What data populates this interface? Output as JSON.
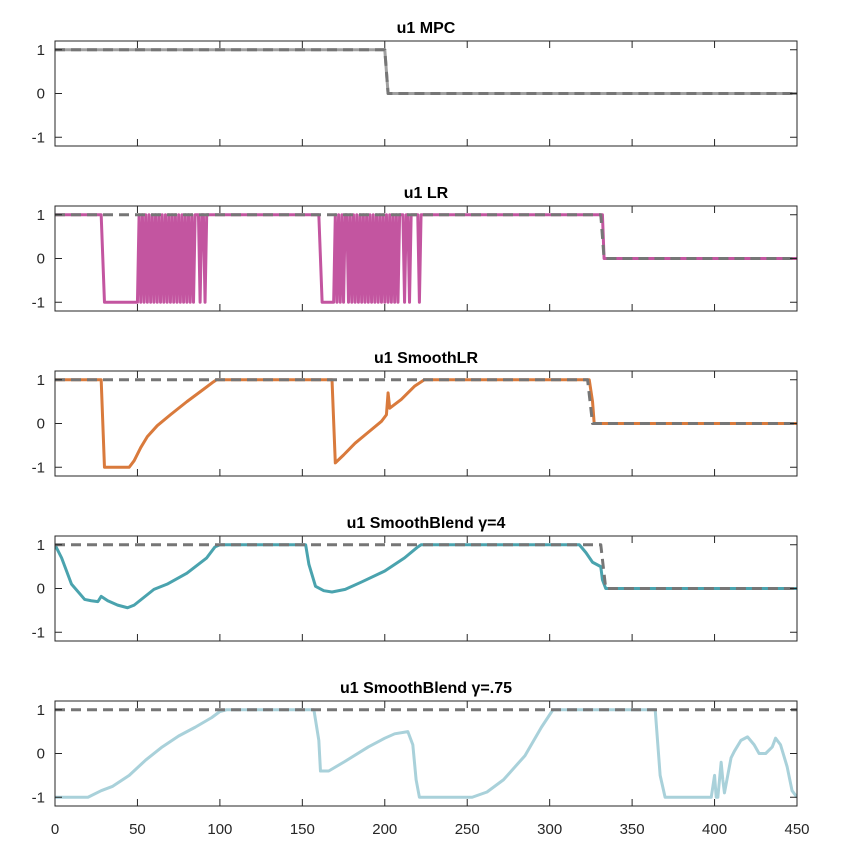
{
  "chart_data": [
    {
      "type": "line",
      "title": "u1 MPC",
      "xlim": [
        0,
        450
      ],
      "ylim": [
        -1.2,
        1.2
      ],
      "yticks": [
        1,
        0,
        -1
      ],
      "ytick_labels": [
        "1",
        "0",
        "-1"
      ],
      "grid": false,
      "series": [
        {
          "color": "#a0a0a0",
          "style": "solid",
          "points": [
            [
              0,
              1
            ],
            [
              200,
              1
            ],
            [
              202,
              0
            ],
            [
              450,
              0
            ]
          ]
        },
        {
          "color": "#767676",
          "style": "dashed",
          "points": [
            [
              0,
              1
            ],
            [
              200,
              1
            ],
            [
              202,
              0
            ],
            [
              450,
              0
            ]
          ]
        }
      ]
    },
    {
      "type": "line",
      "title": "u1 LR",
      "xlim": [
        0,
        450
      ],
      "ylim": [
        -1.2,
        1.2
      ],
      "yticks": [
        1,
        0,
        -1
      ],
      "ytick_labels": [
        "1",
        "0",
        "-1"
      ],
      "grid": false,
      "series": [
        {
          "color": "#c355a0",
          "style": "solid",
          "points": [
            [
              0,
              1
            ],
            [
              28,
              1
            ],
            [
              30,
              -1
            ],
            [
              50,
              -1
            ],
            [
              51,
              1
            ],
            [
              52,
              -1
            ],
            [
              53,
              1
            ],
            [
              54,
              -1
            ],
            [
              55,
              1
            ],
            [
              56,
              -1
            ],
            [
              57,
              1
            ],
            [
              58,
              -1
            ],
            [
              59,
              1
            ],
            [
              60,
              -1
            ],
            [
              61,
              1
            ],
            [
              62,
              -1
            ],
            [
              63,
              1
            ],
            [
              64,
              -1
            ],
            [
              65,
              1
            ],
            [
              66,
              -1
            ],
            [
              67,
              1
            ],
            [
              68,
              -1
            ],
            [
              69,
              1
            ],
            [
              70,
              -1
            ],
            [
              71,
              1
            ],
            [
              72,
              -1
            ],
            [
              73,
              1
            ],
            [
              74,
              -1
            ],
            [
              75,
              1
            ],
            [
              76,
              -1
            ],
            [
              77,
              1
            ],
            [
              78,
              -1
            ],
            [
              79,
              1
            ],
            [
              80,
              -1
            ],
            [
              81,
              1
            ],
            [
              82,
              -1
            ],
            [
              83,
              1
            ],
            [
              84,
              -1
            ],
            [
              85,
              1
            ],
            [
              87,
              1
            ],
            [
              88,
              -1
            ],
            [
              89,
              1
            ],
            [
              90,
              1
            ],
            [
              91,
              -1
            ],
            [
              92,
              1
            ],
            [
              160,
              1
            ],
            [
              162,
              -1
            ],
            [
              169,
              -1
            ],
            [
              170,
              1
            ],
            [
              171,
              -1
            ],
            [
              172,
              1
            ],
            [
              173,
              -1
            ],
            [
              174,
              1
            ],
            [
              175,
              -1
            ],
            [
              176,
              1
            ],
            [
              177,
              1
            ],
            [
              178,
              -1
            ],
            [
              179,
              1
            ],
            [
              180,
              -1
            ],
            [
              181,
              1
            ],
            [
              182,
              -1
            ],
            [
              183,
              1
            ],
            [
              184,
              -1
            ],
            [
              185,
              1
            ],
            [
              186,
              -1
            ],
            [
              187,
              1
            ],
            [
              188,
              -1
            ],
            [
              189,
              1
            ],
            [
              190,
              -1
            ],
            [
              191,
              1
            ],
            [
              192,
              -1
            ],
            [
              193,
              1
            ],
            [
              194,
              -1
            ],
            [
              195,
              1
            ],
            [
              196,
              -1
            ],
            [
              197,
              1
            ],
            [
              198,
              -1
            ],
            [
              199,
              1
            ],
            [
              200,
              -1
            ],
            [
              201,
              1
            ],
            [
              202,
              -1
            ],
            [
              203,
              1
            ],
            [
              204,
              -1
            ],
            [
              205,
              1
            ],
            [
              206,
              -1
            ],
            [
              207,
              1
            ],
            [
              208,
              -1
            ],
            [
              209,
              1
            ],
            [
              211,
              1
            ],
            [
              212,
              -1
            ],
            [
              213,
              1
            ],
            [
              214,
              1
            ],
            [
              215,
              -1
            ],
            [
              216,
              1
            ],
            [
              220,
              1
            ],
            [
              221,
              -1
            ],
            [
              222,
              1
            ],
            [
              332,
              1
            ],
            [
              333,
              0
            ],
            [
              450,
              0
            ]
          ]
        },
        {
          "color": "#767676",
          "style": "dashed",
          "points": [
            [
              0,
              1
            ],
            [
              331,
              1
            ],
            [
              333,
              0
            ],
            [
              450,
              0
            ]
          ]
        }
      ]
    },
    {
      "type": "line",
      "title": "u1 SmoothLR",
      "xlim": [
        0,
        450
      ],
      "ylim": [
        -1.2,
        1.2
      ],
      "yticks": [
        1,
        0,
        -1
      ],
      "ytick_labels": [
        "1",
        "0",
        "-1"
      ],
      "grid": false,
      "series": [
        {
          "color": "#d97a3c",
          "style": "solid",
          "points": [
            [
              0,
              1
            ],
            [
              28,
              1
            ],
            [
              30,
              -1
            ],
            [
              45,
              -1
            ],
            [
              48,
              -0.85
            ],
            [
              52,
              -0.55
            ],
            [
              56,
              -0.3
            ],
            [
              62,
              -0.05
            ],
            [
              70,
              0.2
            ],
            [
              80,
              0.5
            ],
            [
              90,
              0.78
            ],
            [
              96,
              0.95
            ],
            [
              98,
              1
            ],
            [
              168,
              1
            ],
            [
              170,
              -0.9
            ],
            [
              175,
              -0.72
            ],
            [
              182,
              -0.45
            ],
            [
              190,
              -0.2
            ],
            [
              198,
              0.05
            ],
            [
              201,
              0.2
            ],
            [
              202,
              0.7
            ],
            [
              203,
              0.35
            ],
            [
              210,
              0.55
            ],
            [
              218,
              0.85
            ],
            [
              224,
              1
            ],
            [
              324,
              1
            ],
            [
              326,
              0.5
            ],
            [
              327,
              0
            ],
            [
              450,
              0
            ]
          ]
        },
        {
          "color": "#767676",
          "style": "dashed",
          "points": [
            [
              0,
              1
            ],
            [
              323,
              1
            ],
            [
              326,
              0
            ],
            [
              450,
              0
            ]
          ]
        }
      ]
    },
    {
      "type": "line",
      "title": "u1 SmoothBlend γ=4",
      "xlim": [
        0,
        450
      ],
      "ylim": [
        -1.2,
        1.2
      ],
      "yticks": [
        1,
        0,
        -1
      ],
      "ytick_labels": [
        "1",
        "0",
        "-1"
      ],
      "grid": false,
      "series": [
        {
          "color": "#4aa3ae",
          "style": "solid",
          "points": [
            [
              0,
              1
            ],
            [
              4,
              0.7
            ],
            [
              10,
              0.1
            ],
            [
              18,
              -0.25
            ],
            [
              22,
              -0.28
            ],
            [
              26,
              -0.3
            ],
            [
              28,
              -0.18
            ],
            [
              32,
              -0.28
            ],
            [
              38,
              -0.38
            ],
            [
              44,
              -0.44
            ],
            [
              48,
              -0.38
            ],
            [
              54,
              -0.2
            ],
            [
              60,
              -0.02
            ],
            [
              68,
              0.1
            ],
            [
              80,
              0.35
            ],
            [
              92,
              0.7
            ],
            [
              97,
              0.95
            ],
            [
              100,
              1
            ],
            [
              152,
              1
            ],
            [
              154,
              0.55
            ],
            [
              158,
              0.05
            ],
            [
              163,
              -0.05
            ],
            [
              168,
              -0.08
            ],
            [
              176,
              -0.02
            ],
            [
              186,
              0.15
            ],
            [
              200,
              0.4
            ],
            [
              212,
              0.7
            ],
            [
              220,
              0.95
            ],
            [
              222,
              1
            ],
            [
              318,
              1
            ],
            [
              322,
              0.82
            ],
            [
              326,
              0.6
            ],
            [
              331,
              0.5
            ],
            [
              332,
              0.2
            ],
            [
              334,
              0
            ],
            [
              450,
              0
            ]
          ]
        },
        {
          "color": "#767676",
          "style": "dashed",
          "points": [
            [
              0,
              1
            ],
            [
              331,
              1
            ],
            [
              334,
              0
            ],
            [
              450,
              0
            ]
          ]
        }
      ]
    },
    {
      "type": "line",
      "title": "u1 SmoothBlend γ=.75",
      "xlim": [
        0,
        450
      ],
      "ylim": [
        -1.2,
        1.2
      ],
      "yticks": [
        1,
        0,
        -1
      ],
      "ytick_labels": [
        "1",
        "0",
        "-1"
      ],
      "xticks": [
        0,
        50,
        100,
        150,
        200,
        250,
        300,
        350,
        400,
        450
      ],
      "xtick_labels": [
        "0",
        "50",
        "100",
        "150",
        "200",
        "250",
        "300",
        "350",
        "400",
        "450"
      ],
      "grid": false,
      "series": [
        {
          "color": "#a9d1da",
          "style": "solid",
          "points": [
            [
              0,
              -1
            ],
            [
              20,
              -1
            ],
            [
              28,
              -0.85
            ],
            [
              35,
              -0.75
            ],
            [
              45,
              -0.5
            ],
            [
              55,
              -0.15
            ],
            [
              65,
              0.15
            ],
            [
              75,
              0.4
            ],
            [
              85,
              0.6
            ],
            [
              95,
              0.82
            ],
            [
              100,
              0.96
            ],
            [
              104,
              1
            ],
            [
              157,
              1
            ],
            [
              160,
              0.3
            ],
            [
              161,
              -0.4
            ],
            [
              166,
              -0.4
            ],
            [
              175,
              -0.2
            ],
            [
              190,
              0.15
            ],
            [
              200,
              0.35
            ],
            [
              206,
              0.45
            ],
            [
              214,
              0.5
            ],
            [
              217,
              0.2
            ],
            [
              219,
              -0.6
            ],
            [
              221,
              -1
            ],
            [
              253,
              -1
            ],
            [
              262,
              -0.88
            ],
            [
              272,
              -0.6
            ],
            [
              285,
              -0.05
            ],
            [
              295,
              0.6
            ],
            [
              302,
              1
            ],
            [
              364,
              1
            ],
            [
              367,
              -0.5
            ],
            [
              370,
              -1
            ],
            [
              398,
              -1
            ],
            [
              400,
              -0.5
            ],
            [
              401,
              -1
            ],
            [
              402,
              -1
            ],
            [
              404,
              -0.2
            ],
            [
              405,
              -0.6
            ],
            [
              406,
              -0.9
            ],
            [
              410,
              -0.1
            ],
            [
              412,
              0.05
            ],
            [
              416,
              0.3
            ],
            [
              420,
              0.38
            ],
            [
              424,
              0.2
            ],
            [
              427,
              0
            ],
            [
              431,
              0
            ],
            [
              435,
              0.15
            ],
            [
              437,
              0.35
            ],
            [
              440,
              0.2
            ],
            [
              444,
              -0.3
            ],
            [
              447,
              -0.85
            ],
            [
              450,
              -1
            ]
          ]
        },
        {
          "color": "#767676",
          "style": "dashed",
          "points": [
            [
              0,
              1
            ],
            [
              450,
              1
            ]
          ]
        }
      ]
    }
  ]
}
